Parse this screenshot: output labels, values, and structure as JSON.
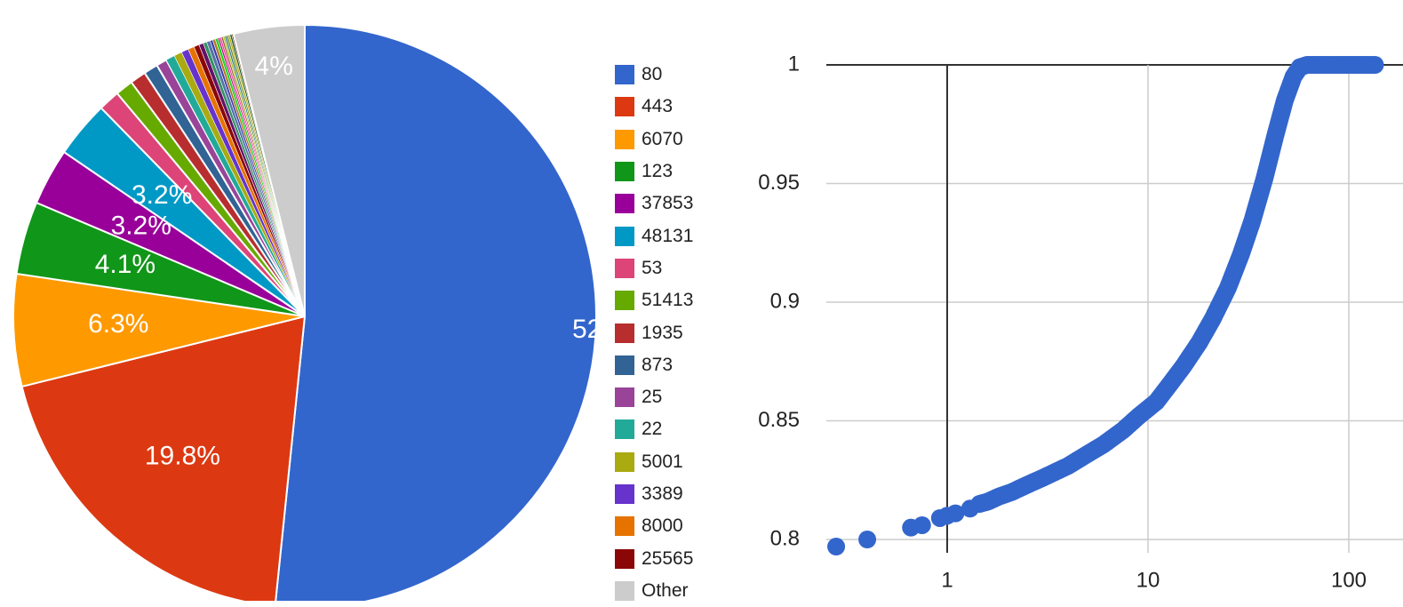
{
  "chart_data": [
    {
      "type": "pie",
      "title": "",
      "legend_position": "right",
      "start_angle": "top",
      "clockwise": true,
      "slices": [
        {
          "label": "80",
          "value": 52.4,
          "color": "#3366cc",
          "display": "52"
        },
        {
          "label": "443",
          "value": 19.8,
          "color": "#dc3912",
          "display": "19.8%"
        },
        {
          "label": "6070",
          "value": 6.3,
          "color": "#ff9900",
          "display": "6.3%"
        },
        {
          "label": "123",
          "value": 4.1,
          "color": "#109618",
          "display": "4.1%"
        },
        {
          "label": "37853",
          "value": 3.2,
          "color": "#990099",
          "display": "3.2%"
        },
        {
          "label": "48131",
          "value": 3.2,
          "color": "#0099c6",
          "display": "3.2%"
        },
        {
          "label": "53",
          "value": 1.2,
          "color": "#dd4477"
        },
        {
          "label": "51413",
          "value": 1.0,
          "color": "#66aa00"
        },
        {
          "label": "1935",
          "value": 0.9,
          "color": "#b82e2e"
        },
        {
          "label": "873",
          "value": 0.8,
          "color": "#316395"
        },
        {
          "label": "25",
          "value": 0.6,
          "color": "#994499"
        },
        {
          "label": "22",
          "value": 0.5,
          "color": "#22aa99"
        },
        {
          "label": "5001",
          "value": 0.45,
          "color": "#aaaa11"
        },
        {
          "label": "3389",
          "value": 0.4,
          "color": "#6633cc"
        },
        {
          "label": "8000",
          "value": 0.35,
          "color": "#e67300"
        },
        {
          "label": "25565",
          "value": 0.3,
          "color": "#8b0707"
        },
        {
          "label": "",
          "value": 0.25,
          "color": "#651067"
        },
        {
          "label": "",
          "value": 0.2,
          "color": "#329262"
        },
        {
          "label": "",
          "value": 0.2,
          "color": "#5574a6"
        },
        {
          "label": "",
          "value": 0.15,
          "color": "#3b3eac"
        },
        {
          "label": "",
          "value": 0.15,
          "color": "#b77322"
        },
        {
          "label": "",
          "value": 0.15,
          "color": "#16d620"
        },
        {
          "label": "",
          "value": 0.1,
          "color": "#b91383"
        },
        {
          "label": "",
          "value": 0.1,
          "color": "#f4359e"
        },
        {
          "label": "",
          "value": 0.1,
          "color": "#9c5935"
        },
        {
          "label": "",
          "value": 0.1,
          "color": "#a9c413"
        },
        {
          "label": "",
          "value": 0.1,
          "color": "#2a778d"
        },
        {
          "label": "",
          "value": 0.1,
          "color": "#668d1c"
        },
        {
          "label": "",
          "value": 0.1,
          "color": "#bea413"
        },
        {
          "label": "",
          "value": 0.1,
          "color": "#0c5922"
        },
        {
          "label": "",
          "value": 0.1,
          "color": "#743411"
        },
        {
          "label": "Other",
          "value": 4.0,
          "color": "#cccccc",
          "display": "4%"
        }
      ],
      "legend": [
        {
          "label": "80",
          "color": "#3366cc"
        },
        {
          "label": "443",
          "color": "#dc3912"
        },
        {
          "label": "6070",
          "color": "#ff9900"
        },
        {
          "label": "123",
          "color": "#109618"
        },
        {
          "label": "37853",
          "color": "#990099"
        },
        {
          "label": "48131",
          "color": "#0099c6"
        },
        {
          "label": "53",
          "color": "#dd4477"
        },
        {
          "label": "51413",
          "color": "#66aa00"
        },
        {
          "label": "1935",
          "color": "#b82e2e"
        },
        {
          "label": "873",
          "color": "#316395"
        },
        {
          "label": "25",
          "color": "#994499"
        },
        {
          "label": "22",
          "color": "#22aa99"
        },
        {
          "label": "5001",
          "color": "#aaaa11"
        },
        {
          "label": "3389",
          "color": "#6633cc"
        },
        {
          "label": "8000",
          "color": "#e67300"
        },
        {
          "label": "25565",
          "color": "#8b0707"
        },
        {
          "label": "Other",
          "color": "#cccccc"
        }
      ]
    },
    {
      "type": "scatter",
      "title": "",
      "xlabel": "",
      "ylabel": "",
      "x_scale": "log",
      "xlim": [
        0.25,
        150
      ],
      "ylim": [
        0.79,
        1.0
      ],
      "x_ticks": [
        {
          "value": 1,
          "label": "1"
        },
        {
          "value": 10,
          "label": "10"
        },
        {
          "value": 100,
          "label": "100"
        }
      ],
      "y_ticks": [
        {
          "value": 0.8,
          "label": "0.8"
        },
        {
          "value": 0.85,
          "label": "0.85"
        },
        {
          "value": 0.9,
          "label": "0.9"
        },
        {
          "value": 0.95,
          "label": "0.95"
        },
        {
          "value": 1,
          "label": "1"
        }
      ],
      "grid": true,
      "color": "#3366cc",
      "series": [
        {
          "points": [
            [
              0.28,
              0.797
            ],
            [
              0.4,
              0.8
            ],
            [
              0.66,
              0.805
            ],
            [
              0.75,
              0.806
            ],
            [
              0.92,
              0.809
            ],
            [
              1.0,
              0.81
            ],
            [
              1.1,
              0.811
            ],
            [
              1.3,
              0.813
            ],
            [
              1.45,
              0.815
            ],
            [
              1.6,
              0.816
            ],
            [
              1.8,
              0.818
            ],
            [
              2.1,
              0.82
            ],
            [
              2.5,
              0.823
            ],
            [
              3.0,
              0.826
            ],
            [
              4.0,
              0.831
            ],
            [
              5.0,
              0.836
            ],
            [
              6.0,
              0.84
            ],
            [
              7.5,
              0.846
            ],
            [
              9.0,
              0.852
            ],
            [
              11.0,
              0.858
            ],
            [
              13.0,
              0.866
            ],
            [
              15.0,
              0.873
            ],
            [
              18.0,
              0.883
            ],
            [
              21.0,
              0.893
            ],
            [
              25.0,
              0.906
            ],
            [
              29.0,
              0.92
            ],
            [
              33.0,
              0.934
            ],
            [
              38.0,
              0.952
            ],
            [
              43.0,
              0.97
            ],
            [
              48.0,
              0.985
            ],
            [
              53.0,
              0.995
            ],
            [
              57.0,
              0.999
            ],
            [
              62.0,
              1.0
            ],
            [
              75.0,
              1.0
            ],
            [
              90.0,
              1.0
            ],
            [
              105.0,
              1.0
            ],
            [
              120.0,
              1.0
            ],
            [
              135.0,
              1.0
            ]
          ]
        }
      ]
    }
  ]
}
